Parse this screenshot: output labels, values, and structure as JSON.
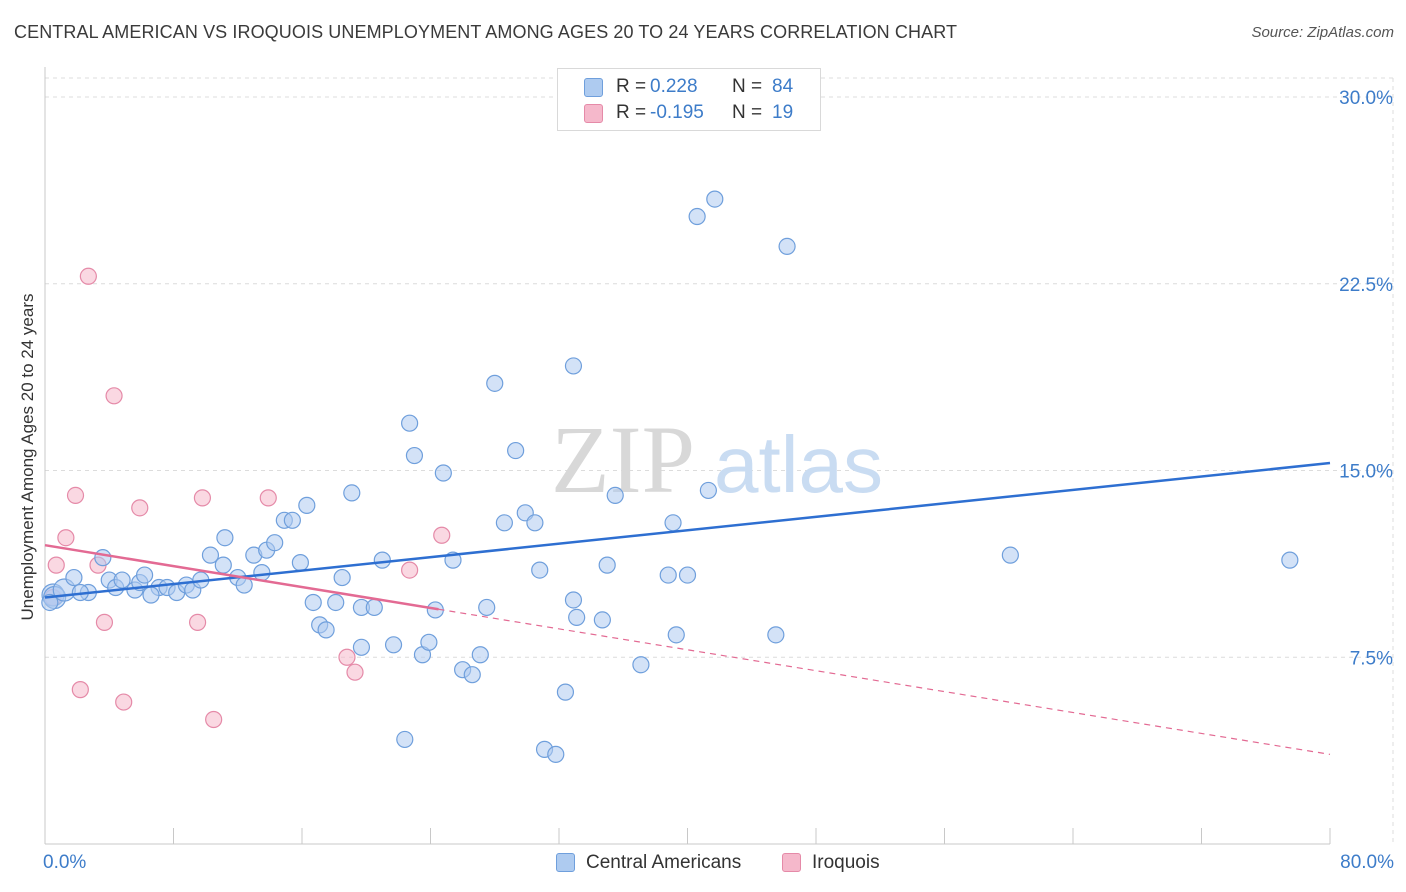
{
  "title": "CENTRAL AMERICAN VS IROQUOIS UNEMPLOYMENT AMONG AGES 20 TO 24 YEARS CORRELATION CHART",
  "source": "Source: ZipAtlas.com",
  "watermark": {
    "zip": "ZIP",
    "atlas": "atlas"
  },
  "legend": {
    "r_label": "R =",
    "n_label": "N =",
    "rows": [
      {
        "r": "0.228",
        "n": "84",
        "color": "#aecbf0"
      },
      {
        "r": "-0.195",
        "n": "19",
        "color": "#f5b8cb"
      }
    ]
  },
  "bottom_legend": [
    "Central Americans",
    "Iroquois"
  ],
  "colors": {
    "blue_fill": "#aecbf0",
    "blue_stroke": "#6f9fdc",
    "blue_line": "#2e6fd1",
    "pink_fill": "#f5b8cb",
    "pink_stroke": "#e58aa8",
    "pink_line": "#e36a93",
    "tick_text": "#3d7cc9",
    "grid": "#dcdcdc"
  },
  "chart_data": {
    "type": "scatter",
    "title": "CENTRAL AMERICAN VS IROQUOIS UNEMPLOYMENT AMONG AGES 20 TO 24 YEARS CORRELATION CHART",
    "xlabel": "",
    "ylabel": "Unemployment Among Ages 20 to 24 years",
    "xlim": [
      0,
      80
    ],
    "ylim": [
      0,
      31
    ],
    "x_tick_labels": [
      "0.0%",
      "80.0%"
    ],
    "y_ticks": [
      7.5,
      15.0,
      22.5,
      30.0
    ],
    "y_tick_labels": [
      "7.5%",
      "15.0%",
      "22.5%",
      "30.0%"
    ],
    "grid": true,
    "legend_position": "top-center",
    "series": [
      {
        "name": "Central Americans",
        "r": 0.228,
        "n": 84,
        "trend": {
          "x": [
            0,
            80
          ],
          "y": [
            9.9,
            15.3
          ],
          "style": "solid"
        },
        "points": [
          [
            0.5,
            10.0
          ],
          [
            0.6,
            9.9
          ],
          [
            1.2,
            10.2
          ],
          [
            1.8,
            10.7
          ],
          [
            2.7,
            10.1
          ],
          [
            3.6,
            11.5
          ],
          [
            4.0,
            10.6
          ],
          [
            4.4,
            10.3
          ],
          [
            4.8,
            10.6
          ],
          [
            5.6,
            10.2
          ],
          [
            5.9,
            10.5
          ],
          [
            6.2,
            10.8
          ],
          [
            7.1,
            10.3
          ],
          [
            7.6,
            10.3
          ],
          [
            8.2,
            10.1
          ],
          [
            8.8,
            10.4
          ],
          [
            9.2,
            10.2
          ],
          [
            9.7,
            10.6
          ],
          [
            10.3,
            11.6
          ],
          [
            11.1,
            11.2
          ],
          [
            11.2,
            12.3
          ],
          [
            12.0,
            10.7
          ],
          [
            12.4,
            10.4
          ],
          [
            13.0,
            11.6
          ],
          [
            13.5,
            10.9
          ],
          [
            13.8,
            11.8
          ],
          [
            14.3,
            12.1
          ],
          [
            14.9,
            13.0
          ],
          [
            15.4,
            13.0
          ],
          [
            15.9,
            11.3
          ],
          [
            16.3,
            13.6
          ],
          [
            16.7,
            9.7
          ],
          [
            17.1,
            8.8
          ],
          [
            17.5,
            8.6
          ],
          [
            18.1,
            9.7
          ],
          [
            18.5,
            10.7
          ],
          [
            19.1,
            14.1
          ],
          [
            19.7,
            7.9
          ],
          [
            19.7,
            9.5
          ],
          [
            20.5,
            9.5
          ],
          [
            21.0,
            11.4
          ],
          [
            21.7,
            8.0
          ],
          [
            22.4,
            4.2
          ],
          [
            22.7,
            16.9
          ],
          [
            23.0,
            15.6
          ],
          [
            23.5,
            7.6
          ],
          [
            23.9,
            8.1
          ],
          [
            24.3,
            9.4
          ],
          [
            24.8,
            14.9
          ],
          [
            25.4,
            11.4
          ],
          [
            26.0,
            7.0
          ],
          [
            26.6,
            6.8
          ],
          [
            27.1,
            7.6
          ],
          [
            27.5,
            9.5
          ],
          [
            28.0,
            18.5
          ],
          [
            28.6,
            12.9
          ],
          [
            29.3,
            15.8
          ],
          [
            29.9,
            13.3
          ],
          [
            30.5,
            12.9
          ],
          [
            30.8,
            11.0
          ],
          [
            31.1,
            3.8
          ],
          [
            31.8,
            3.6
          ],
          [
            32.4,
            6.1
          ],
          [
            32.9,
            19.2
          ],
          [
            32.9,
            9.8
          ],
          [
            33.1,
            9.1
          ],
          [
            34.7,
            9.0
          ],
          [
            35.0,
            11.2
          ],
          [
            35.5,
            14.0
          ],
          [
            37.1,
            7.2
          ],
          [
            38.8,
            10.8
          ],
          [
            39.1,
            12.9
          ],
          [
            39.3,
            8.4
          ],
          [
            40.0,
            10.8
          ],
          [
            40.6,
            25.2
          ],
          [
            41.3,
            14.2
          ],
          [
            41.7,
            25.9
          ],
          [
            45.5,
            8.4
          ],
          [
            46.2,
            24.0
          ],
          [
            60.1,
            11.6
          ],
          [
            77.5,
            11.4
          ],
          [
            0.3,
            9.7
          ],
          [
            2.2,
            10.1
          ],
          [
            6.6,
            10.0
          ]
        ]
      },
      {
        "name": "Iroquois",
        "r": -0.195,
        "n": 19,
        "trend": {
          "x": [
            0,
            80
          ],
          "y": [
            12.0,
            3.6
          ],
          "style": "solid-to-x24-then-dashed"
        },
        "points": [
          [
            0.5,
            9.9
          ],
          [
            0.7,
            11.2
          ],
          [
            1.3,
            12.3
          ],
          [
            1.9,
            14.0
          ],
          [
            2.2,
            6.2
          ],
          [
            2.7,
            22.8
          ],
          [
            3.3,
            11.2
          ],
          [
            3.7,
            8.9
          ],
          [
            4.3,
            18.0
          ],
          [
            4.9,
            5.7
          ],
          [
            5.9,
            13.5
          ],
          [
            9.5,
            8.9
          ],
          [
            9.8,
            13.9
          ],
          [
            10.5,
            5.0
          ],
          [
            13.9,
            13.9
          ],
          [
            18.8,
            7.5
          ],
          [
            19.3,
            6.9
          ],
          [
            22.7,
            11.0
          ],
          [
            24.7,
            12.4
          ]
        ]
      }
    ]
  }
}
